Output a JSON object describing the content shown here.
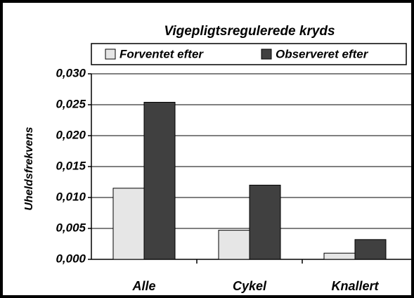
{
  "chart_data": {
    "type": "bar",
    "title": "Vigepligtsregulerede kryds",
    "ylabel": "Uheldsfrekvens",
    "categories": [
      "Alle",
      "Cykel",
      "Knallert"
    ],
    "series": [
      {
        "name": "Forventet efter",
        "color": "#e6e6e6",
        "values": [
          0.0115,
          0.0047,
          0.001
        ]
      },
      {
        "name": "Observeret efter",
        "color": "#404040",
        "values": [
          0.0254,
          0.012,
          0.0032
        ]
      }
    ],
    "ylim": [
      0,
      0.03
    ],
    "yticks": [
      {
        "value": 0,
        "label": "0,000"
      },
      {
        "value": 0.005,
        "label": "0,005"
      },
      {
        "value": 0.01,
        "label": "0,010"
      },
      {
        "value": 0.015,
        "label": "0,015"
      },
      {
        "value": 0.02,
        "label": "0,020"
      },
      {
        "value": 0.025,
        "label": "0,025"
      },
      {
        "value": 0.03,
        "label": "0,030"
      }
    ],
    "grid": true
  }
}
